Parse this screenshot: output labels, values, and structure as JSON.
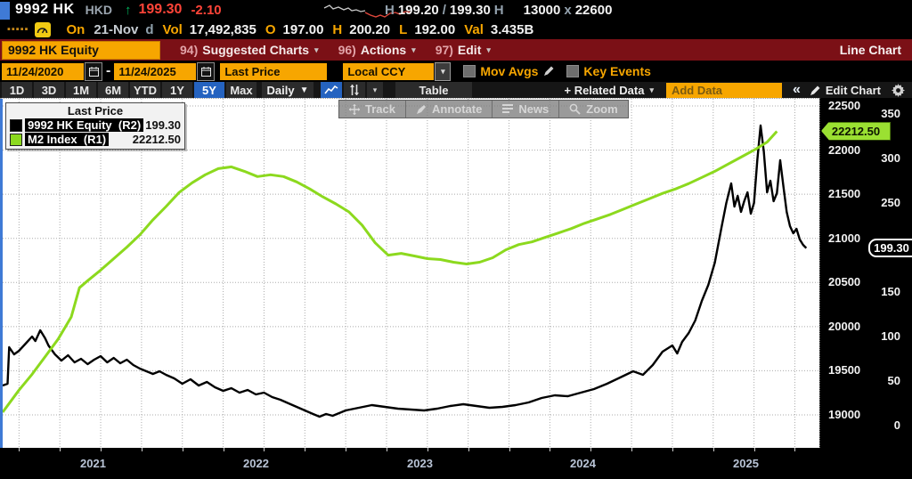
{
  "quote_bar": {
    "ticker": "9992 HK",
    "currency": "HKD",
    "arrow": "↑",
    "last_price": "199.30",
    "change": "-2.10",
    "range_row": [
      {
        "t": "dim",
        "v": "H"
      },
      {
        "t": "val",
        "v": "199.20"
      },
      {
        "t": "dim",
        "v": "/"
      },
      {
        "t": "val",
        "v": "199.30"
      },
      {
        "t": "dim",
        "v": "H"
      },
      {
        "t": "gap",
        "v": ""
      },
      {
        "t": "val",
        "v": "13000"
      },
      {
        "t": "dim",
        "v": "x"
      },
      {
        "t": "val",
        "v": "22600"
      }
    ],
    "session_row": [
      {
        "t": "lbl",
        "v": "On"
      },
      {
        "t": "dimv",
        "v": "21-Nov"
      },
      {
        "t": "dim",
        "v": "d"
      },
      {
        "t": "lbl",
        "v": "Vol"
      },
      {
        "t": "val",
        "v": "17,492,835"
      },
      {
        "t": "lbl",
        "v": "O"
      },
      {
        "t": "val",
        "v": "197.00"
      },
      {
        "t": "lbl",
        "v": "H"
      },
      {
        "t": "val",
        "v": "200.20"
      },
      {
        "t": "lbl",
        "v": "L"
      },
      {
        "t": "val",
        "v": "192.00"
      },
      {
        "t": "lbl",
        "v": "Val"
      },
      {
        "t": "val",
        "v": "3.435B"
      }
    ],
    "sparkline": {
      "gray": [
        [
          0,
          7
        ],
        [
          6,
          4
        ],
        [
          10,
          8
        ],
        [
          16,
          6
        ],
        [
          22,
          9
        ],
        [
          27,
          7
        ],
        [
          31,
          10
        ],
        [
          36,
          9
        ],
        [
          41,
          11
        ],
        [
          46,
          10
        ]
      ],
      "red": [
        [
          46,
          12
        ],
        [
          52,
          15
        ],
        [
          58,
          17
        ],
        [
          63,
          15
        ],
        [
          68,
          17
        ],
        [
          74,
          13
        ],
        [
          80,
          12
        ],
        [
          85,
          14
        ],
        [
          91,
          11
        ],
        [
          98,
          12
        ]
      ]
    }
  },
  "menu_bar": {
    "security_input": "9992 HK Equity",
    "items": [
      {
        "num": "94)",
        "label": "Suggested Charts",
        "caret": "▾"
      },
      {
        "num": "96)",
        "label": "Actions",
        "caret": "▾"
      },
      {
        "num": "97)",
        "label": "Edit",
        "caret": "▾"
      }
    ],
    "right_label": "Line Chart"
  },
  "settings_bar": {
    "date_from": "11/24/2020",
    "date_separator": "-",
    "date_to": "11/24/2025",
    "field_select": "Last Price",
    "currency_select": "Local CCY",
    "mov_avgs_label": "Mov Avgs",
    "key_events_label": "Key Events"
  },
  "toolbar": {
    "periods": [
      "1D",
      "3D",
      "1M",
      "6M",
      "YTD",
      "1Y",
      "5Y",
      "Max"
    ],
    "active_period": "5Y",
    "frequency": "Daily",
    "frequency_caret": "▼",
    "table_label": "Table",
    "related_data_label": "+ Related Data",
    "related_caret": "▾",
    "add_data_placeholder": "Add Data",
    "collapse_glyph": "«",
    "edit_chart_label": "Edit Chart"
  },
  "legend": {
    "title": "Last Price",
    "series": [
      {
        "name": "9992 HK Equity  (R2)",
        "value": "199.30",
        "swatch": "#000000"
      },
      {
        "name": "M2 Index  (R1)",
        "value": "22212.50",
        "swatch": "#8CD91E"
      }
    ]
  },
  "chart_tools": [
    "Track",
    "Annotate",
    "News",
    "Zoom"
  ],
  "chart_data": {
    "type": "line",
    "title": "9992 HK Equity (Last Price) vs M2 Index, 11/24/2020 - 11/24/2025, daily",
    "x_range": [
      2020.9,
      2025.9
    ],
    "x_tick_years": [
      2021,
      2022,
      2023,
      2024,
      2025
    ],
    "grid": "dotted, quarterly vertical / 500-unit horizontal",
    "right_axis_primary": {
      "name": "M2 Index (R1)",
      "ticks": [
        22500,
        22000,
        21500,
        21000,
        20500,
        20000,
        19500,
        19000
      ],
      "range": [
        18600,
        22580
      ],
      "last_value": 22212.5,
      "last_label": "22212.50"
    },
    "right_axis_secondary": {
      "name": "9992 HK Equity (R2)",
      "ticks": [
        350,
        300,
        250,
        150,
        100,
        50,
        0
      ],
      "range": [
        -26,
        367
      ],
      "last_value": 199.3,
      "last_label": "199.30"
    },
    "series": [
      {
        "name": "9992 HK Equity",
        "axis": "R2",
        "color": "#000000",
        "width": 2.4,
        "points": [
          [
            2020.9,
            45
          ],
          [
            2020.93,
            47
          ],
          [
            2020.94,
            88
          ],
          [
            2020.97,
            80
          ],
          [
            2021.0,
            84
          ],
          [
            2021.04,
            92
          ],
          [
            2021.08,
            100
          ],
          [
            2021.1,
            95
          ],
          [
            2021.13,
            107
          ],
          [
            2021.16,
            98
          ],
          [
            2021.18,
            90
          ],
          [
            2021.22,
            80
          ],
          [
            2021.26,
            73
          ],
          [
            2021.3,
            79
          ],
          [
            2021.34,
            71
          ],
          [
            2021.38,
            75
          ],
          [
            2021.42,
            69
          ],
          [
            2021.46,
            74
          ],
          [
            2021.5,
            78
          ],
          [
            2021.54,
            71
          ],
          [
            2021.58,
            76
          ],
          [
            2021.62,
            70
          ],
          [
            2021.66,
            74
          ],
          [
            2021.7,
            68
          ],
          [
            2021.74,
            64
          ],
          [
            2021.78,
            61
          ],
          [
            2021.82,
            58
          ],
          [
            2021.86,
            61
          ],
          [
            2021.9,
            57
          ],
          [
            2021.95,
            53
          ],
          [
            2022.0,
            47
          ],
          [
            2022.05,
            52
          ],
          [
            2022.1,
            45
          ],
          [
            2022.15,
            49
          ],
          [
            2022.2,
            43
          ],
          [
            2022.25,
            39
          ],
          [
            2022.3,
            42
          ],
          [
            2022.35,
            37
          ],
          [
            2022.4,
            40
          ],
          [
            2022.45,
            35
          ],
          [
            2022.5,
            37
          ],
          [
            2022.55,
            32
          ],
          [
            2022.6,
            29
          ],
          [
            2022.65,
            25
          ],
          [
            2022.7,
            21
          ],
          [
            2022.75,
            17
          ],
          [
            2022.8,
            13
          ],
          [
            2022.84,
            10
          ],
          [
            2022.88,
            13
          ],
          [
            2022.92,
            11
          ],
          [
            2022.96,
            14
          ],
          [
            2023.0,
            17
          ],
          [
            2023.08,
            20
          ],
          [
            2023.16,
            23
          ],
          [
            2023.24,
            21
          ],
          [
            2023.32,
            19
          ],
          [
            2023.4,
            18
          ],
          [
            2023.48,
            17
          ],
          [
            2023.56,
            19
          ],
          [
            2023.64,
            22
          ],
          [
            2023.72,
            24
          ],
          [
            2023.8,
            22
          ],
          [
            2023.88,
            20
          ],
          [
            2023.96,
            21
          ],
          [
            2024.04,
            23
          ],
          [
            2024.12,
            26
          ],
          [
            2024.2,
            31
          ],
          [
            2024.28,
            34
          ],
          [
            2024.36,
            33
          ],
          [
            2024.44,
            37
          ],
          [
            2024.52,
            41
          ],
          [
            2024.6,
            47
          ],
          [
            2024.68,
            54
          ],
          [
            2024.76,
            61
          ],
          [
            2024.82,
            57
          ],
          [
            2024.88,
            68
          ],
          [
            2024.94,
            83
          ],
          [
            2025.0,
            90
          ],
          [
            2025.03,
            81
          ],
          [
            2025.06,
            94
          ],
          [
            2025.1,
            104
          ],
          [
            2025.14,
            118
          ],
          [
            2025.18,
            140
          ],
          [
            2025.22,
            158
          ],
          [
            2025.26,
            183
          ],
          [
            2025.3,
            222
          ],
          [
            2025.33,
            250
          ],
          [
            2025.36,
            272
          ],
          [
            2025.38,
            246
          ],
          [
            2025.4,
            258
          ],
          [
            2025.42,
            240
          ],
          [
            2025.44,
            252
          ],
          [
            2025.46,
            262
          ],
          [
            2025.48,
            238
          ],
          [
            2025.5,
            250
          ],
          [
            2025.52,
            298
          ],
          [
            2025.54,
            337
          ],
          [
            2025.56,
            308
          ],
          [
            2025.58,
            262
          ],
          [
            2025.6,
            275
          ],
          [
            2025.62,
            252
          ],
          [
            2025.64,
            261
          ],
          [
            2025.66,
            298
          ],
          [
            2025.68,
            268
          ],
          [
            2025.7,
            240
          ],
          [
            2025.72,
            224
          ],
          [
            2025.74,
            216
          ],
          [
            2025.76,
            221
          ],
          [
            2025.78,
            209
          ],
          [
            2025.8,
            203
          ],
          [
            2025.82,
            199.3
          ]
        ]
      },
      {
        "name": "M2 Index",
        "axis": "R1",
        "color": "#8CD91E",
        "width": 3,
        "points": [
          [
            2020.9,
            19030
          ],
          [
            2021.0,
            19280
          ],
          [
            2021.08,
            19460
          ],
          [
            2021.16,
            19660
          ],
          [
            2021.24,
            19860
          ],
          [
            2021.32,
            20110
          ],
          [
            2021.37,
            20440
          ],
          [
            2021.42,
            20520
          ],
          [
            2021.5,
            20640
          ],
          [
            2021.58,
            20770
          ],
          [
            2021.66,
            20900
          ],
          [
            2021.74,
            21040
          ],
          [
            2021.82,
            21210
          ],
          [
            2021.9,
            21360
          ],
          [
            2021.98,
            21520
          ],
          [
            2022.06,
            21630
          ],
          [
            2022.14,
            21720
          ],
          [
            2022.22,
            21790
          ],
          [
            2022.3,
            21810
          ],
          [
            2022.38,
            21760
          ],
          [
            2022.46,
            21700
          ],
          [
            2022.54,
            21720
          ],
          [
            2022.62,
            21700
          ],
          [
            2022.7,
            21640
          ],
          [
            2022.78,
            21560
          ],
          [
            2022.86,
            21470
          ],
          [
            2022.94,
            21390
          ],
          [
            2023.02,
            21300
          ],
          [
            2023.1,
            21150
          ],
          [
            2023.18,
            20950
          ],
          [
            2023.26,
            20810
          ],
          [
            2023.34,
            20830
          ],
          [
            2023.42,
            20800
          ],
          [
            2023.5,
            20770
          ],
          [
            2023.58,
            20760
          ],
          [
            2023.66,
            20730
          ],
          [
            2023.74,
            20710
          ],
          [
            2023.82,
            20730
          ],
          [
            2023.9,
            20780
          ],
          [
            2023.98,
            20870
          ],
          [
            2024.06,
            20930
          ],
          [
            2024.14,
            20960
          ],
          [
            2024.22,
            21010
          ],
          [
            2024.3,
            21060
          ],
          [
            2024.38,
            21110
          ],
          [
            2024.46,
            21170
          ],
          [
            2024.54,
            21220
          ],
          [
            2024.62,
            21270
          ],
          [
            2024.7,
            21330
          ],
          [
            2024.78,
            21390
          ],
          [
            2024.86,
            21450
          ],
          [
            2024.94,
            21510
          ],
          [
            2025.02,
            21560
          ],
          [
            2025.1,
            21620
          ],
          [
            2025.18,
            21690
          ],
          [
            2025.26,
            21760
          ],
          [
            2025.34,
            21840
          ],
          [
            2025.42,
            21920
          ],
          [
            2025.5,
            22000
          ],
          [
            2025.58,
            22090
          ],
          [
            2025.64,
            22212.5
          ]
        ]
      }
    ]
  },
  "colors": {
    "accent_orange": "#F7A600",
    "bar_red": "#7B1016",
    "price_red": "#FF4438",
    "up_green": "#00B35C",
    "line_green": "#8CD91E",
    "accent_blue": "#2563C0",
    "badge_green": "#9BE032"
  }
}
